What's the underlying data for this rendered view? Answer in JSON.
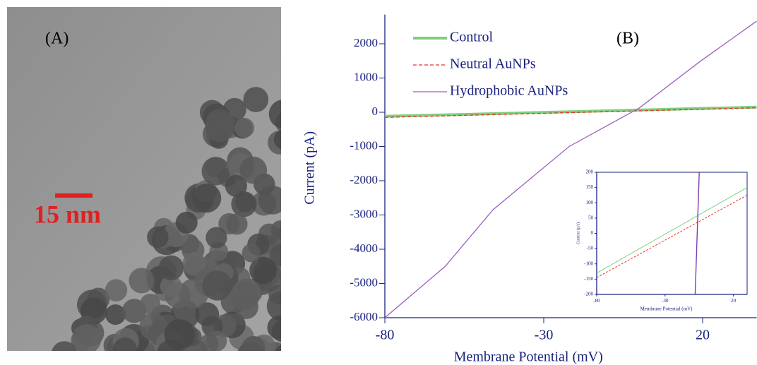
{
  "panel_a": {
    "label": "(A)",
    "scale_bar": "15 nm"
  },
  "chart_data": [
    {
      "type": "line",
      "panel_label": "(B)",
      "x_label": "Membrane Potential (mV)",
      "y_label": "Current (pA)",
      "xlim": [
        -80,
        37
      ],
      "xticks": [
        -80,
        -30,
        20
      ],
      "ylim": [
        -6000,
        2750
      ],
      "yticks": [
        -6000,
        -5000,
        -4000,
        -3000,
        -2000,
        -1000,
        0,
        1000,
        2000
      ],
      "legend": "upper left",
      "series": [
        {
          "name": "Control",
          "color": "#7fcf7f",
          "x": [
            -80,
            37
          ],
          "values": [
            -120,
            150
          ]
        },
        {
          "name": "Neutral AuNPs",
          "color": "#e8342a",
          "dashed": true,
          "x": [
            -80,
            37
          ],
          "values": [
            -150,
            130
          ]
        },
        {
          "name": "Hydrophobic AuNPs",
          "color": "#9b5fc0",
          "x": [
            -80,
            -61,
            -46,
            -22,
            0,
            19,
            37
          ],
          "values": [
            -6000,
            -4500,
            -2850,
            -1000,
            120,
            1470,
            2660
          ]
        }
      ]
    },
    {
      "type": "line",
      "x_label": "Membrane Potential (mV)",
      "y_label": "Current (pA)",
      "xlim": [
        -80,
        30
      ],
      "xticks": [
        -80,
        -30,
        20
      ],
      "ylim": [
        -200,
        200
      ],
      "yticks": [
        -200,
        -150,
        -100,
        -50,
        0,
        50,
        100,
        150,
        200
      ],
      "series": [
        {
          "name": "Control",
          "color": "#7fcf7f",
          "x": [
            -80,
            30
          ],
          "values": [
            -130,
            150
          ]
        },
        {
          "name": "Neutral AuNPs",
          "color": "#e8342a",
          "dashed": true,
          "x": [
            -80,
            30
          ],
          "values": [
            -145,
            125
          ]
        },
        {
          "name": "Hydrophobic AuNPs",
          "color": "#7a3fb0",
          "x": [
            -8,
            -5
          ],
          "values": [
            -200,
            200
          ]
        }
      ]
    }
  ]
}
